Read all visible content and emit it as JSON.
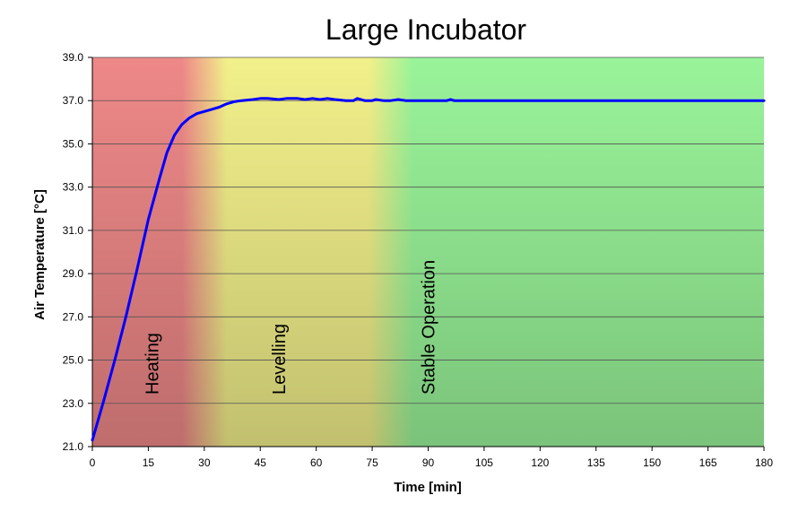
{
  "chart_data": {
    "type": "line",
    "title": "Large Incubator",
    "xlabel": "Time [min]",
    "ylabel": "Air Temperature [°C]",
    "xlim": [
      0,
      180
    ],
    "ylim": [
      21.0,
      39.0
    ],
    "x_ticks": [
      0,
      15,
      30,
      45,
      60,
      75,
      90,
      105,
      120,
      135,
      150,
      165,
      180
    ],
    "y_ticks": [
      "21.0",
      "23.0",
      "25.0",
      "27.0",
      "29.0",
      "31.0",
      "33.0",
      "35.0",
      "37.0",
      "39.0"
    ],
    "grid": "horizontal",
    "legend": "none",
    "line_color": "#0000ff",
    "phases": [
      {
        "label": "Heating",
        "x_start": 0,
        "x_end": 30,
        "color": "#ee8888",
        "label_x": 16
      },
      {
        "label": "Levelling",
        "x_start": 30,
        "x_end": 80,
        "color": "#f2f08a",
        "label_x": 50
      },
      {
        "label": "Stable Operation",
        "x_start": 80,
        "x_end": 180,
        "color": "#99f499",
        "label_x": 90
      }
    ],
    "series": [
      {
        "points": [
          [
            0,
            21.3
          ],
          [
            3,
            23.1
          ],
          [
            6,
            25.0
          ],
          [
            9,
            27.0
          ],
          [
            12,
            29.2
          ],
          [
            15,
            31.5
          ],
          [
            18,
            33.4
          ],
          [
            20,
            34.6
          ],
          [
            22,
            35.4
          ],
          [
            24,
            35.9
          ],
          [
            26,
            36.2
          ],
          [
            28,
            36.4
          ],
          [
            30,
            36.5
          ],
          [
            32,
            36.6
          ],
          [
            34,
            36.7
          ],
          [
            36,
            36.85
          ],
          [
            38,
            36.95
          ],
          [
            40,
            37.0
          ],
          [
            43,
            37.05
          ],
          [
            45,
            37.1
          ],
          [
            47,
            37.1
          ],
          [
            50,
            37.05
          ],
          [
            52,
            37.1
          ],
          [
            55,
            37.1
          ],
          [
            57,
            37.05
          ],
          [
            59,
            37.1
          ],
          [
            61,
            37.05
          ],
          [
            63,
            37.1
          ],
          [
            65,
            37.05
          ],
          [
            68,
            37.0
          ],
          [
            70,
            37.0
          ],
          [
            71,
            37.1
          ],
          [
            73,
            37.0
          ],
          [
            75,
            37.0
          ],
          [
            76,
            37.05
          ],
          [
            78,
            37.0
          ],
          [
            80,
            37.0
          ],
          [
            82,
            37.05
          ],
          [
            84,
            37.0
          ],
          [
            90,
            37.0
          ],
          [
            95,
            37.0
          ],
          [
            96,
            37.05
          ],
          [
            97,
            37.0
          ],
          [
            105,
            37.0
          ],
          [
            120,
            37.0
          ],
          [
            135,
            37.0
          ],
          [
            150,
            37.0
          ],
          [
            165,
            37.0
          ],
          [
            180,
            37.0
          ]
        ]
      }
    ]
  }
}
